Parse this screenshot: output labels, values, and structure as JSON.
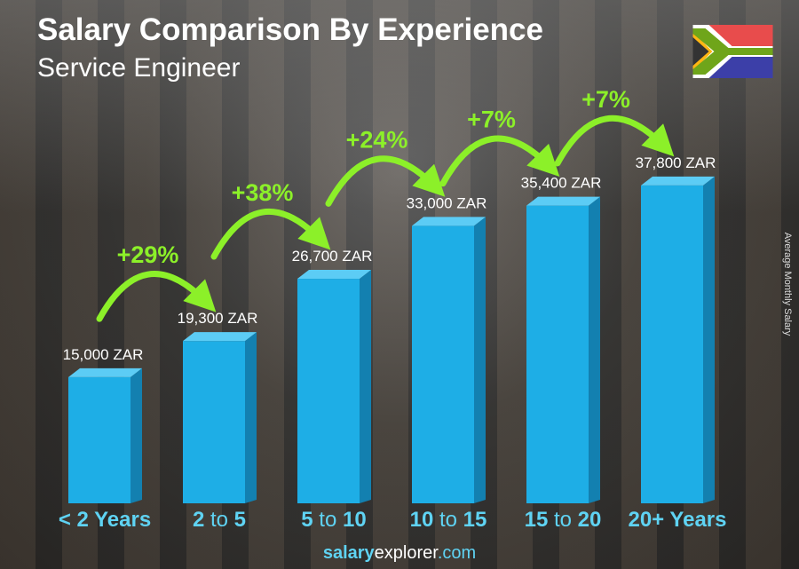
{
  "header": {
    "title": "Salary Comparison By Experience",
    "subtitle": "Service Engineer"
  },
  "footer": {
    "brand_bold": "salary",
    "brand_rest": "explorer",
    "domain": ".com"
  },
  "flag": {
    "icon": "south-africa-flag-icon"
  },
  "colors": {
    "bar": "#1eaee6",
    "bar_side": "#1380b0",
    "bar_top": "#5cccf5",
    "category": "#5fd3f3",
    "percent": "#8cf029"
  },
  "chart_data": {
    "type": "bar",
    "title": "Salary Comparison By Experience",
    "subtitle": "Service Engineer",
    "ylabel": "Average Monthly Salary",
    "categories": [
      {
        "parts": [
          {
            "t": "< 2 Years",
            "b": true
          }
        ]
      },
      {
        "parts": [
          {
            "t": "2",
            "b": true
          },
          {
            "t": " to ",
            "b": false
          },
          {
            "t": "5",
            "b": true
          }
        ]
      },
      {
        "parts": [
          {
            "t": "5",
            "b": true
          },
          {
            "t": " to ",
            "b": false
          },
          {
            "t": "10",
            "b": true
          }
        ]
      },
      {
        "parts": [
          {
            "t": "10",
            "b": true
          },
          {
            "t": " to ",
            "b": false
          },
          {
            "t": "15",
            "b": true
          }
        ]
      },
      {
        "parts": [
          {
            "t": "15",
            "b": true
          },
          {
            "t": " to ",
            "b": false
          },
          {
            "t": "20",
            "b": true
          }
        ]
      },
      {
        "parts": [
          {
            "t": "20+ Years",
            "b": true
          }
        ]
      }
    ],
    "values": [
      15000,
      19300,
      26700,
      33000,
      35400,
      37800
    ],
    "value_labels": [
      "15,000 ZAR",
      "19,300 ZAR",
      "26,700 ZAR",
      "33,000 ZAR",
      "35,400 ZAR",
      "37,800 ZAR"
    ],
    "changes": [
      "+29%",
      "+38%",
      "+24%",
      "+7%",
      "+7%"
    ],
    "grid": false
  }
}
